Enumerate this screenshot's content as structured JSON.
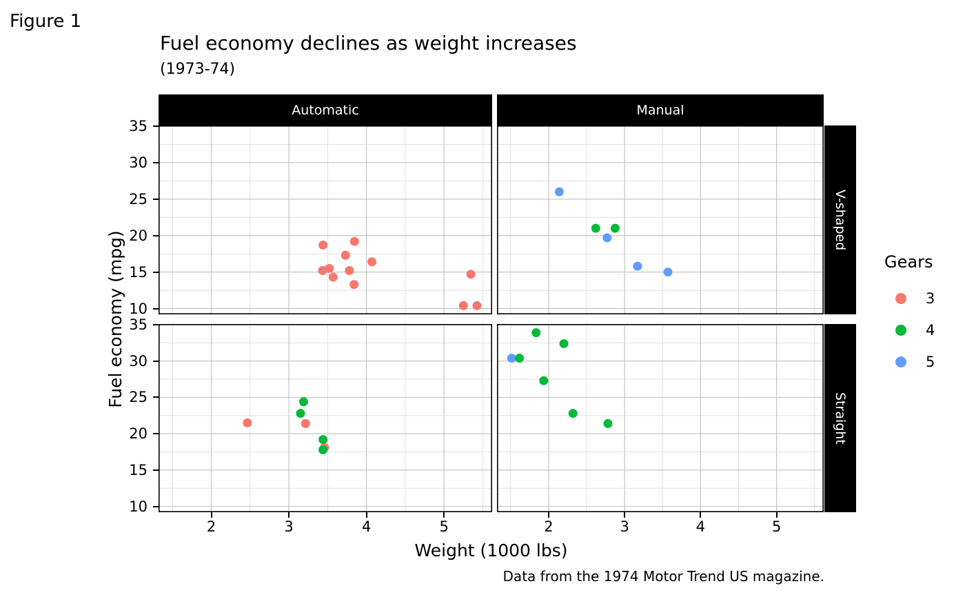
{
  "figure": {
    "tag": "Figure 1",
    "title": "Fuel economy declines as weight increases",
    "subtitle": "(1973-74)",
    "caption": "Data from the 1974 Motor Trend US magazine.",
    "x_axis_title": "Weight (1000 lbs)",
    "y_axis_title": "Fuel economy (mpg)"
  },
  "facets": {
    "columns": [
      "Automatic",
      "Manual"
    ],
    "rows": [
      "V-shaped",
      "Straight"
    ]
  },
  "legend": {
    "title": "Gears",
    "items": [
      {
        "label": "3",
        "color": "#F8766D"
      },
      {
        "label": "4",
        "color": "#00BA38"
      },
      {
        "label": "5",
        "color": "#619CFF"
      }
    ]
  },
  "chart_data": {
    "type": "scatter",
    "title": "Fuel economy declines as weight increases",
    "subtitle": "(1973-74)",
    "caption": "Data from the 1974 Motor Trend US magazine.",
    "xlabel": "Weight (1000 lbs)",
    "ylabel": "Fuel economy (mpg)",
    "legend_title": "Gears",
    "color_by": "gears",
    "colors": {
      "3": "#F8766D",
      "4": "#00BA38",
      "5": "#619CFF"
    },
    "xlim": [
      1.32,
      5.62
    ],
    "ylim": [
      9.2,
      35.1
    ],
    "x_ticks": [
      2,
      3,
      4,
      5
    ],
    "y_ticks": [
      35,
      30,
      25,
      20,
      15,
      10
    ],
    "x_minor_ticks": [
      1.5,
      2.5,
      3.5,
      4.5,
      5.5
    ],
    "y_minor_ticks": [
      12.5,
      17.5,
      22.5,
      27.5,
      32.5
    ],
    "grid": true,
    "legend_position": "right",
    "panels": [
      {
        "col": "Automatic",
        "row": "V-shaped",
        "points": [
          {
            "wt": 3.44,
            "mpg": 18.7,
            "gears": 3
          },
          {
            "wt": 3.57,
            "mpg": 14.3,
            "gears": 3
          },
          {
            "wt": 4.07,
            "mpg": 16.4,
            "gears": 3
          },
          {
            "wt": 3.73,
            "mpg": 17.3,
            "gears": 3
          },
          {
            "wt": 3.78,
            "mpg": 15.2,
            "gears": 3
          },
          {
            "wt": 5.25,
            "mpg": 10.4,
            "gears": 3
          },
          {
            "wt": 5.424,
            "mpg": 10.4,
            "gears": 3
          },
          {
            "wt": 5.345,
            "mpg": 14.7,
            "gears": 3
          },
          {
            "wt": 3.52,
            "mpg": 15.5,
            "gears": 3
          },
          {
            "wt": 3.435,
            "mpg": 15.2,
            "gears": 3
          },
          {
            "wt": 3.84,
            "mpg": 13.3,
            "gears": 3
          },
          {
            "wt": 3.845,
            "mpg": 19.2,
            "gears": 3
          }
        ]
      },
      {
        "col": "Manual",
        "row": "V-shaped",
        "points": [
          {
            "wt": 2.14,
            "mpg": 26.0,
            "gears": 5
          },
          {
            "wt": 3.17,
            "mpg": 15.8,
            "gears": 5
          },
          {
            "wt": 2.77,
            "mpg": 19.7,
            "gears": 5
          },
          {
            "wt": 3.57,
            "mpg": 15.0,
            "gears": 5
          },
          {
            "wt": 2.62,
            "mpg": 21.0,
            "gears": 4
          },
          {
            "wt": 2.875,
            "mpg": 21.0,
            "gears": 4
          }
        ]
      },
      {
        "col": "Automatic",
        "row": "Straight",
        "points": [
          {
            "wt": 2.465,
            "mpg": 21.5,
            "gears": 3
          },
          {
            "wt": 3.215,
            "mpg": 21.4,
            "gears": 3
          },
          {
            "wt": 3.46,
            "mpg": 18.1,
            "gears": 3
          },
          {
            "wt": 3.15,
            "mpg": 22.8,
            "gears": 4
          },
          {
            "wt": 3.19,
            "mpg": 24.4,
            "gears": 4
          },
          {
            "wt": 3.44,
            "mpg": 19.2,
            "gears": 4
          },
          {
            "wt": 3.44,
            "mpg": 17.8,
            "gears": 4
          }
        ]
      },
      {
        "col": "Manual",
        "row": "Straight",
        "points": [
          {
            "wt": 1.513,
            "mpg": 30.4,
            "gears": 5
          },
          {
            "wt": 1.615,
            "mpg": 30.4,
            "gears": 4
          },
          {
            "wt": 1.835,
            "mpg": 33.9,
            "gears": 4
          },
          {
            "wt": 2.2,
            "mpg": 32.4,
            "gears": 4
          },
          {
            "wt": 1.935,
            "mpg": 27.3,
            "gears": 4
          },
          {
            "wt": 2.32,
            "mpg": 22.8,
            "gears": 4
          },
          {
            "wt": 2.78,
            "mpg": 21.4,
            "gears": 4
          }
        ]
      }
    ]
  },
  "theme": {
    "strip_bg": "#000000",
    "strip_text": "#ffffff",
    "panel_bg": "#ffffff",
    "panel_border": "#000000",
    "grid_major": "#c4c4c4",
    "grid_minor": "#e1e1e1",
    "tick_color": "#000000"
  }
}
